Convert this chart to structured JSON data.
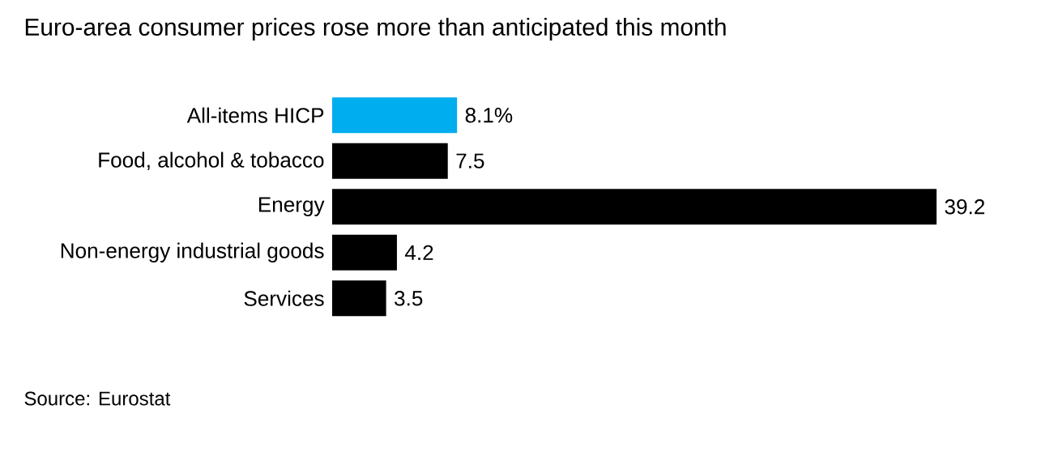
{
  "chart_data": {
    "type": "bar",
    "orientation": "horizontal",
    "title": "Euro-area consumer prices rose more than anticipated this month",
    "categories": [
      "All-items HICP",
      "Food, alcohol & tobacco",
      "Energy",
      "Non-energy industrial goods",
      "Services"
    ],
    "values": [
      8.1,
      7.5,
      39.2,
      4.2,
      3.5
    ],
    "value_labels": [
      "8.1%",
      "7.5",
      "39.2",
      "4.2",
      "3.5"
    ],
    "colors": [
      "#00adef",
      "#000000",
      "#000000",
      "#000000",
      "#000000"
    ],
    "annotations": [
      "Source: Eurostat"
    ]
  }
}
